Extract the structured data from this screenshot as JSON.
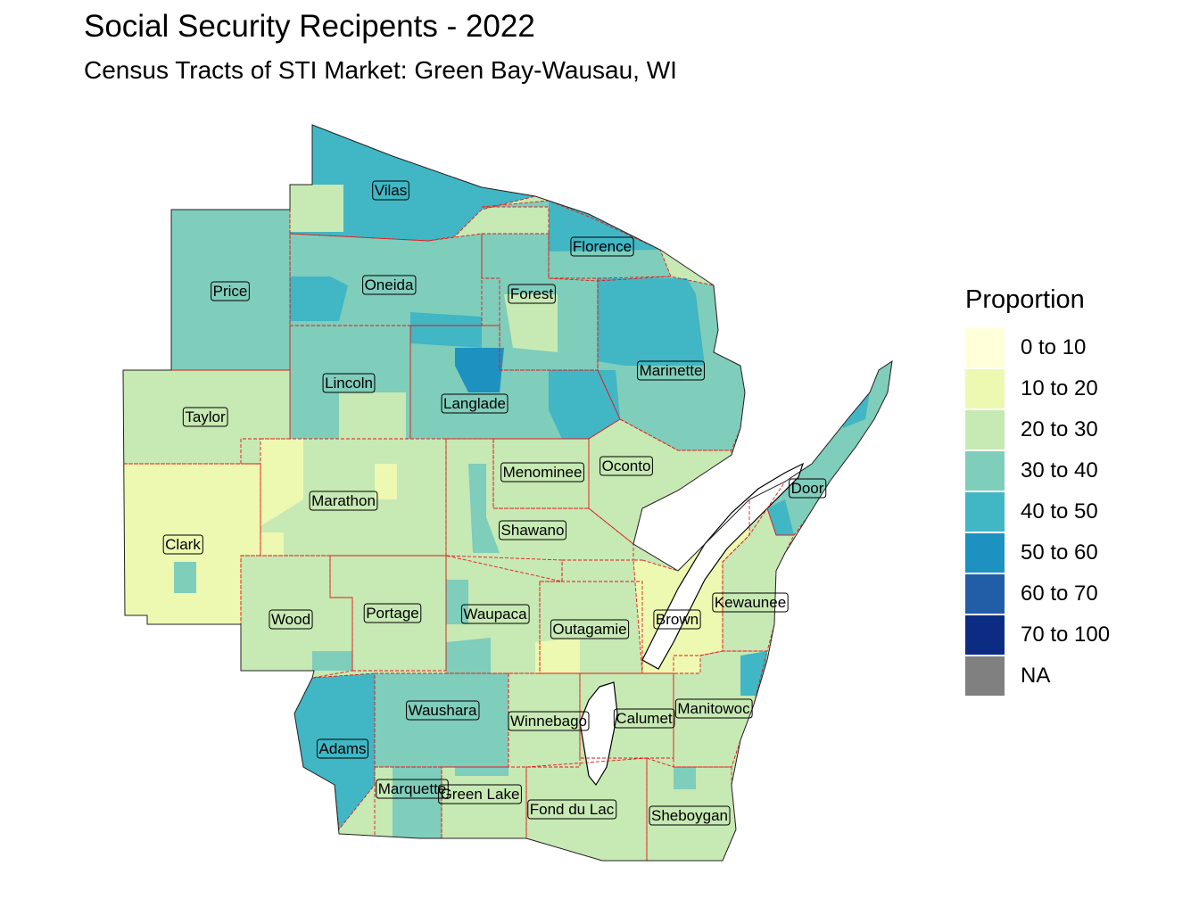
{
  "title": "Social Security Recipents - 2022",
  "subtitle": "Census Tracts of STI Market: Green Bay-Wausau, WI",
  "legend": {
    "title": "Proportion",
    "classes": [
      {
        "label": "0 to 10",
        "color": "#FFFFD9"
      },
      {
        "label": "10 to 20",
        "color": "#EDF8B1"
      },
      {
        "label": "20 to 30",
        "color": "#C7E9B4"
      },
      {
        "label": "30 to 40",
        "color": "#7FCDBB"
      },
      {
        "label": "40 to 50",
        "color": "#41B6C4"
      },
      {
        "label": "50 to 60",
        "color": "#1D91C0"
      },
      {
        "label": "60 to 70",
        "color": "#225EA8"
      },
      {
        "label": "70 to 100",
        "color": "#0C2C84"
      },
      {
        "label": "NA",
        "color": "#808080"
      }
    ]
  },
  "map": {
    "boundary_color": "#E31A1C",
    "water_color": "#FFFFFF",
    "counties": [
      {
        "name": "Vilas",
        "class": "40 to 50"
      },
      {
        "name": "Florence",
        "class": "30 to 40"
      },
      {
        "name": "Price",
        "class": "30 to 40"
      },
      {
        "name": "Oneida",
        "class": "30 to 40"
      },
      {
        "name": "Forest",
        "class": "30 to 40"
      },
      {
        "name": "Marinette",
        "class": "30 to 40"
      },
      {
        "name": "Lincoln",
        "class": "30 to 40"
      },
      {
        "name": "Langlade",
        "class": "30 to 40"
      },
      {
        "name": "Taylor",
        "class": "20 to 30"
      },
      {
        "name": "Menominee",
        "class": "20 to 30"
      },
      {
        "name": "Oconto",
        "class": "20 to 30"
      },
      {
        "name": "Door",
        "class": "30 to 40"
      },
      {
        "name": "Marathon",
        "class": "20 to 30"
      },
      {
        "name": "Shawano",
        "class": "20 to 30"
      },
      {
        "name": "Clark",
        "class": "10 to 20"
      },
      {
        "name": "Kewaunee",
        "class": "20 to 30"
      },
      {
        "name": "Wood",
        "class": "20 to 30"
      },
      {
        "name": "Portage",
        "class": "20 to 30"
      },
      {
        "name": "Waupaca",
        "class": "20 to 30"
      },
      {
        "name": "Outagamie",
        "class": "20 to 30"
      },
      {
        "name": "Brown",
        "class": "10 to 20"
      },
      {
        "name": "Waushara",
        "class": "30 to 40"
      },
      {
        "name": "Winnebago",
        "class": "20 to 30"
      },
      {
        "name": "Calumet",
        "class": "20 to 30"
      },
      {
        "name": "Manitowoc",
        "class": "20 to 30"
      },
      {
        "name": "Adams",
        "class": "40 to 50"
      },
      {
        "name": "Marquette",
        "class": "30 to 40"
      },
      {
        "name": "Green Lake",
        "class": "20 to 30"
      },
      {
        "name": "Fond du Lac",
        "class": "20 to 30"
      },
      {
        "name": "Sheboygan",
        "class": "20 to 30"
      }
    ]
  }
}
